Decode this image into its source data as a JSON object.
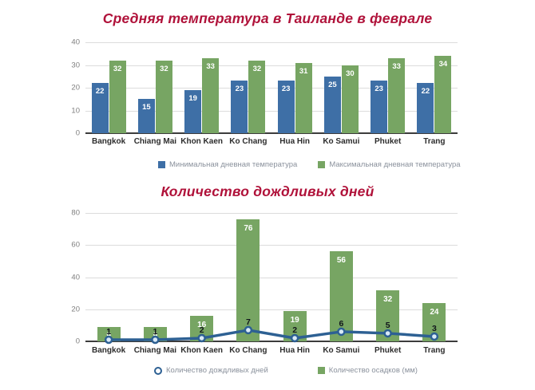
{
  "colors": {
    "title": "#B0123A",
    "min_temp_bar": "#3E6FA6",
    "max_temp_bar": "#77A563",
    "precipitation_bar": "#77A563",
    "rainy_days_line": "#2D6093",
    "line_marker_fill": "#D9EAF7",
    "bar_value_label": "#FFFFFF",
    "line_value_label": "#10151B"
  },
  "chart_data": [
    {
      "type": "bar",
      "title": "Средняя температура в Таиланде в феврале",
      "categories": [
        "Bangkok",
        "Chiang Mai",
        "Khon Kaen",
        "Ko Chang",
        "Hua Hin",
        "Ko Samui",
        "Phuket",
        "Trang"
      ],
      "series": [
        {
          "name": "Минимальная дневная температура",
          "type": "bar",
          "color": "#3E6FA6",
          "values": [
            22,
            15,
            19,
            23,
            23,
            25,
            23,
            22
          ]
        },
        {
          "name": "Максимальная дневная температура",
          "type": "bar",
          "color": "#77A563",
          "values": [
            32,
            32,
            33,
            32,
            31,
            30,
            33,
            34
          ]
        }
      ],
      "ylim": [
        0,
        40
      ],
      "yticks": [
        0,
        10,
        20,
        30,
        40
      ],
      "grid": true,
      "legend_position": "bottom"
    },
    {
      "type": "combo",
      "title": "Количество дождливых дней",
      "categories": [
        "Bangkok",
        "Chiang Mai",
        "Khon Kaen",
        "Ko Chang",
        "Hua Hin",
        "Ko Samui",
        "Phuket",
        "Trang"
      ],
      "series": [
        {
          "name": "Количество дождливых дней",
          "type": "line",
          "marker": "circle",
          "color": "#2D6093",
          "values": [
            1,
            1,
            2,
            7,
            2,
            6,
            5,
            3
          ]
        },
        {
          "name": "Количество осадков (мм)",
          "type": "bar",
          "color": "#77A563",
          "values": [
            9,
            9,
            16,
            76,
            19,
            56,
            32,
            24
          ]
        }
      ],
      "ylim": [
        0,
        80
      ],
      "yticks": [
        0,
        20,
        40,
        60,
        80
      ],
      "grid": true,
      "legend_position": "bottom"
    }
  ]
}
